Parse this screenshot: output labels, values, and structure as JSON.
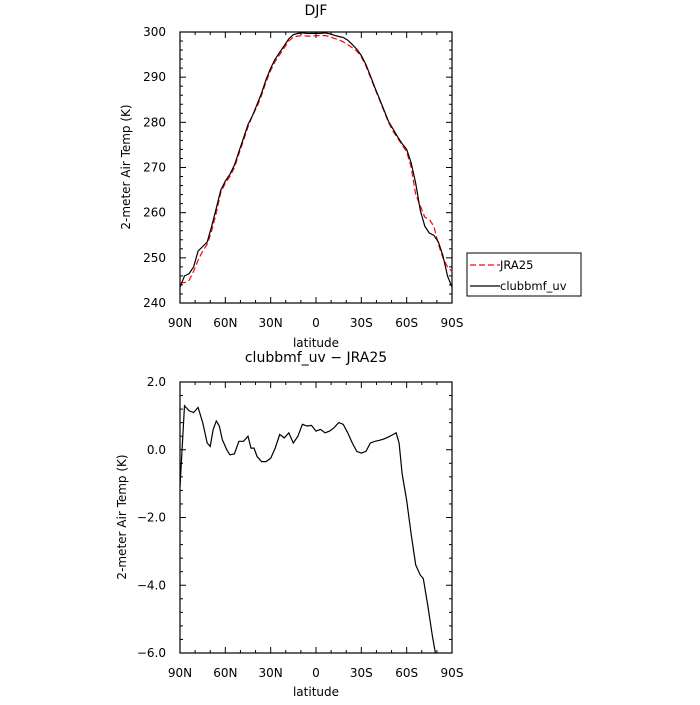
{
  "chart_data": [
    {
      "type": "line",
      "title": "DJF",
      "xlabel": "latitude",
      "ylabel": "2-meter Air Temp (K)",
      "xlim": [
        90,
        -90
      ],
      "ylim": [
        240,
        300
      ],
      "x_ticks": [
        90,
        60,
        30,
        0,
        -30,
        -60,
        -90
      ],
      "x_tick_labels": [
        "90N",
        "60N",
        "30N",
        "0",
        "30S",
        "60S",
        "90S"
      ],
      "y_ticks": [
        240,
        250,
        260,
        270,
        280,
        290,
        300
      ],
      "y_tick_labels": [
        "240",
        "250",
        "260",
        "270",
        "280",
        "290",
        "300"
      ],
      "legend_position": "right",
      "series": [
        {
          "name": "JRA25",
          "color": "#ff0000",
          "style": "dashed",
          "points": [
            [
              90,
              244.5
            ],
            [
              87,
              244.5
            ],
            [
              84,
              245
            ],
            [
              81,
              247
            ],
            [
              78,
              249.5
            ],
            [
              75,
              251.5
            ],
            [
              72,
              253
            ],
            [
              69,
              256
            ],
            [
              66,
              260
            ],
            [
              63,
              264.5
            ],
            [
              60,
              266.5
            ],
            [
              57,
              268
            ],
            [
              54,
              270
            ],
            [
              51,
              273
            ],
            [
              48,
              276
            ],
            [
              45,
              279
            ],
            [
              42,
              281.5
            ],
            [
              39,
              283.5
            ],
            [
              36,
              286
            ],
            [
              33,
              289
            ],
            [
              30,
              291.5
            ],
            [
              27,
              293.5
            ],
            [
              24,
              295
            ],
            [
              21,
              296.5
            ],
            [
              18,
              298
            ],
            [
              15,
              298.9
            ],
            [
              12,
              299.1
            ],
            [
              9,
              299.2
            ],
            [
              6,
              299.1
            ],
            [
              3,
              299.1
            ],
            [
              0,
              299.2
            ],
            [
              -3,
              299.2
            ],
            [
              -6,
              299.2
            ],
            [
              -9,
              299
            ],
            [
              -12,
              298.6
            ],
            [
              -15,
              298.3
            ],
            [
              -18,
              297.8
            ],
            [
              -21,
              297.2
            ],
            [
              -24,
              296.5
            ],
            [
              -27,
              295.8
            ],
            [
              -30,
              294.5
            ],
            [
              -33,
              292.5
            ],
            [
              -36,
              290
            ],
            [
              -39,
              287.5
            ],
            [
              -42,
              285
            ],
            [
              -45,
              282.5
            ],
            [
              -48,
              280
            ],
            [
              -51,
              278
            ],
            [
              -54,
              276.5
            ],
            [
              -57,
              275
            ],
            [
              -60,
              273.5
            ],
            [
              -63,
              270
            ],
            [
              -66,
              264
            ],
            [
              -69,
              261.5
            ],
            [
              -72,
              259
            ],
            [
              -75,
              258.5
            ],
            [
              -78,
              257
            ],
            [
              -81,
              253
            ],
            [
              -84,
              250
            ],
            [
              -87,
              248
            ],
            [
              -90,
              247
            ]
          ]
        },
        {
          "name": "clubbmf_uv",
          "color": "#000000",
          "style": "solid",
          "points": [
            [
              90,
              243.5
            ],
            [
              87,
              246
            ],
            [
              84,
              246.5
            ],
            [
              81,
              248
            ],
            [
              78,
              251.5
            ],
            [
              75,
              252.5
            ],
            [
              72,
              253.5
            ],
            [
              69,
              257
            ],
            [
              66,
              261
            ],
            [
              63,
              265
            ],
            [
              60,
              267
            ],
            [
              57,
              268.5
            ],
            [
              54,
              270.5
            ],
            [
              51,
              273.5
            ],
            [
              48,
              276.5
            ],
            [
              45,
              279.5
            ],
            [
              42,
              281.5
            ],
            [
              39,
              284
            ],
            [
              36,
              286.5
            ],
            [
              33,
              289.5
            ],
            [
              30,
              292
            ],
            [
              27,
              294
            ],
            [
              24,
              295.5
            ],
            [
              21,
              297
            ],
            [
              18,
              298.5
            ],
            [
              15,
              299.4
            ],
            [
              12,
              299.7
            ],
            [
              9,
              299.8
            ],
            [
              6,
              299.7
            ],
            [
              3,
              299.7
            ],
            [
              0,
              299.7
            ],
            [
              -3,
              299.7
            ],
            [
              -6,
              299.8
            ],
            [
              -9,
              299.6
            ],
            [
              -12,
              299.3
            ],
            [
              -15,
              299
            ],
            [
              -18,
              298.8
            ],
            [
              -21,
              298.2
            ],
            [
              -24,
              297.2
            ],
            [
              -27,
              296.2
            ],
            [
              -30,
              294.8
            ],
            [
              -33,
              292.8
            ],
            [
              -36,
              290.3
            ],
            [
              -39,
              287.7
            ],
            [
              -42,
              285.2
            ],
            [
              -45,
              282.7
            ],
            [
              -48,
              280.2
            ],
            [
              -51,
              278.5
            ],
            [
              -54,
              276.8
            ],
            [
              -57,
              275.3
            ],
            [
              -60,
              274
            ],
            [
              -63,
              271
            ],
            [
              -66,
              266.5
            ],
            [
              -69,
              260.5
            ],
            [
              -72,
              257
            ],
            [
              -75,
              255.5
            ],
            [
              -78,
              255
            ],
            [
              -81,
              253.5
            ],
            [
              -84,
              250.5
            ],
            [
              -87,
              246
            ],
            [
              -90,
              243.5
            ]
          ]
        }
      ]
    },
    {
      "type": "line",
      "title": "clubbmf_uv − JRA25",
      "xlabel": "latitude",
      "ylabel": "2-meter Air Temp (K)",
      "xlim": [
        90,
        -90
      ],
      "ylim": [
        -6,
        2
      ],
      "x_ticks": [
        90,
        60,
        30,
        0,
        -30,
        -60,
        -90
      ],
      "x_tick_labels": [
        "90N",
        "60N",
        "30N",
        "0",
        "30S",
        "60S",
        "90S"
      ],
      "y_ticks": [
        -6,
        -4,
        -2,
        0,
        2
      ],
      "y_tick_labels": [
        "−6.0",
        "−4.0",
        "−2.0",
        "0.0",
        "2.0"
      ],
      "series": [
        {
          "color": "#000000",
          "style": "solid",
          "points": [
            [
              90,
              -1.1
            ],
            [
              87,
              1.3
            ],
            [
              84,
              1.15
            ],
            [
              81,
              1.1
            ],
            [
              78,
              1.25
            ],
            [
              75,
              0.8
            ],
            [
              72,
              0.2
            ],
            [
              70,
              0.1
            ],
            [
              68,
              0.6
            ],
            [
              66,
              0.85
            ],
            [
              64,
              0.7
            ],
            [
              62,
              0.3
            ],
            [
              59,
              0
            ],
            [
              57,
              -0.15
            ],
            [
              54,
              -0.12
            ],
            [
              51,
              0.25
            ],
            [
              48,
              0.25
            ],
            [
              45,
              0.4
            ],
            [
              43,
              0.05
            ],
            [
              41,
              0.05
            ],
            [
              39,
              -0.2
            ],
            [
              36,
              -0.35
            ],
            [
              33,
              -0.35
            ],
            [
              30,
              -0.25
            ],
            [
              27,
              0.05
            ],
            [
              24,
              0.45
            ],
            [
              21,
              0.35
            ],
            [
              18,
              0.5
            ],
            [
              15,
              0.2
            ],
            [
              12,
              0.4
            ],
            [
              9,
              0.75
            ],
            [
              6,
              0.7
            ],
            [
              3,
              0.72
            ],
            [
              0,
              0.55
            ],
            [
              -3,
              0.6
            ],
            [
              -6,
              0.5
            ],
            [
              -9,
              0.55
            ],
            [
              -12,
              0.65
            ],
            [
              -15,
              0.8
            ],
            [
              -18,
              0.75
            ],
            [
              -21,
              0.5
            ],
            [
              -24,
              0.2
            ],
            [
              -27,
              -0.05
            ],
            [
              -30,
              -0.1
            ],
            [
              -33,
              -0.05
            ],
            [
              -36,
              0.2
            ],
            [
              -39,
              0.25
            ],
            [
              -42,
              0.28
            ],
            [
              -45,
              0.32
            ],
            [
              -48,
              0.38
            ],
            [
              -51,
              0.45
            ],
            [
              -53,
              0.5
            ],
            [
              -55,
              0.2
            ],
            [
              -57,
              -0.7
            ],
            [
              -60,
              -1.5
            ],
            [
              -63,
              -2.5
            ],
            [
              -66,
              -3.4
            ],
            [
              -69,
              -3.7
            ],
            [
              -71,
              -3.8
            ],
            [
              -74,
              -4.6
            ],
            [
              -77,
              -5.5
            ],
            [
              -79,
              -6.0
            ]
          ]
        }
      ]
    }
  ]
}
